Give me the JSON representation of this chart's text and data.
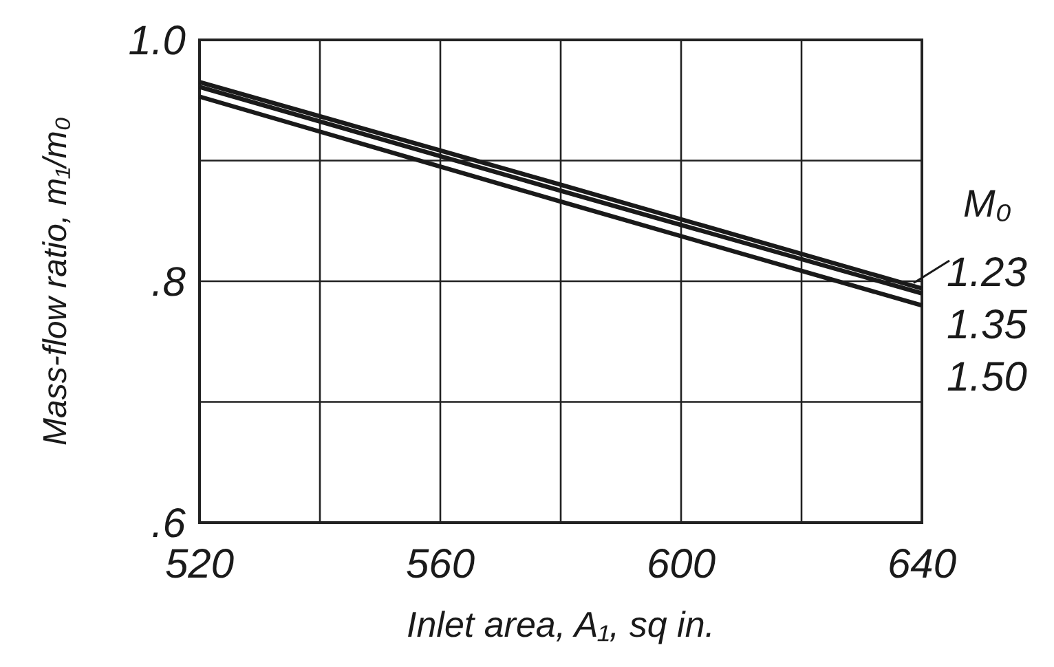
{
  "chart_data": {
    "type": "line",
    "xlabel": "Inlet area, A₁, sq in.",
    "ylabel": "Mass-flow ratio, m₁/m₀",
    "legend_title": "M₀",
    "legend": "right",
    "grid": true,
    "marker": "none",
    "line_style": "solid",
    "xlim": [
      520,
      640
    ],
    "xticks": [
      520,
      {
        "value": 540,
        "label": null
      },
      560,
      {
        "value": 580,
        "label": null
      },
      600,
      {
        "value": 620,
        "label": null
      },
      640
    ],
    "ylim": [
      0.6,
      1.0
    ],
    "yticks": [
      {
        "value": 0.6,
        "label": ".6"
      },
      {
        "value": 0.7,
        "label": null
      },
      {
        "value": 0.8,
        "label": ".8"
      },
      {
        "value": 0.9,
        "label": null
      },
      {
        "value": 1.0,
        "label": "1.0"
      }
    ],
    "x": [
      520,
      580,
      640
    ],
    "series": [
      {
        "name": "1.23",
        "color": "#1a1a1a",
        "values": [
          0.965,
          0.88,
          0.794
        ]
      },
      {
        "name": "1.35",
        "color": "#1a1a1a",
        "values": [
          0.961,
          0.875,
          0.79
        ]
      },
      {
        "name": "1.50",
        "color": "#1a1a1a",
        "values": [
          0.953,
          0.866,
          0.78
        ]
      }
    ]
  }
}
